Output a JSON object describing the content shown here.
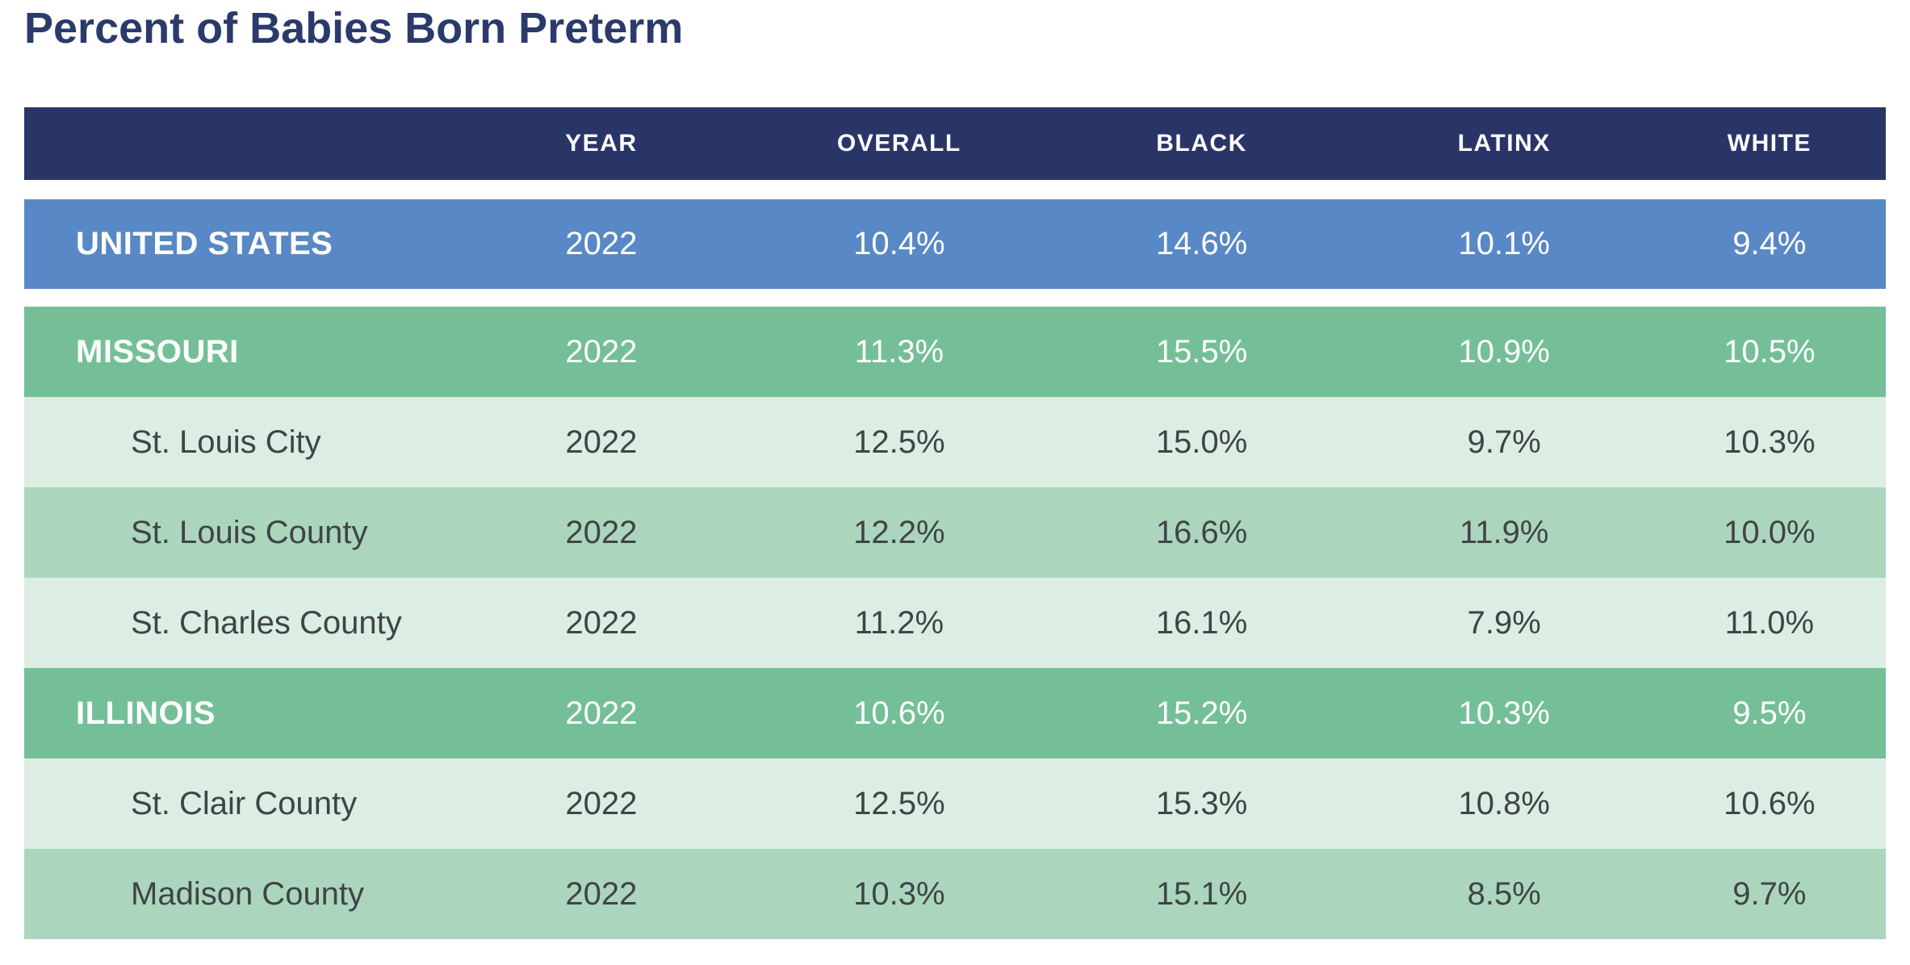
{
  "title": "Percent of Babies Born Preterm",
  "colors": {
    "title_navy": "#2b3a6b",
    "header_navy": "#2a3567",
    "us_row_blue": "#5888c5",
    "state_row_green": "#74bf97",
    "county_row_light_green": "#dcede3",
    "county_row_medium_green": "#abd6bd",
    "dark_text": "#3f4447",
    "light_text": "#ffffff"
  },
  "table": {
    "columns": {
      "label": "",
      "year": "YEAR",
      "overall": "OVERALL",
      "black": "BLACK",
      "latinx": "LATINX",
      "white": "WHITE"
    },
    "rows": [
      {
        "label": "UNITED STATES",
        "year": "2022",
        "overall": "10.4%",
        "black": "14.6%",
        "latinx": "10.1%",
        "white": "9.4%"
      },
      {
        "label": "MISSOURI",
        "year": "2022",
        "overall": "11.3%",
        "black": "15.5%",
        "latinx": "10.9%",
        "white": "10.5%"
      },
      {
        "label": "St. Louis City",
        "year": "2022",
        "overall": "12.5%",
        "black": "15.0%",
        "latinx": "9.7%",
        "white": "10.3%"
      },
      {
        "label": "St. Louis County",
        "year": "2022",
        "overall": "12.2%",
        "black": "16.6%",
        "latinx": "11.9%",
        "white": "10.0%"
      },
      {
        "label": "St. Charles County",
        "year": "2022",
        "overall": "11.2%",
        "black": "16.1%",
        "latinx": "7.9%",
        "white": "11.0%"
      },
      {
        "label": "ILLINOIS",
        "year": "2022",
        "overall": "10.6%",
        "black": "15.2%",
        "latinx": "10.3%",
        "white": "9.5%"
      },
      {
        "label": "St. Clair County",
        "year": "2022",
        "overall": "12.5%",
        "black": "15.3%",
        "latinx": "10.8%",
        "white": "10.6%"
      },
      {
        "label": "Madison County",
        "year": "2022",
        "overall": "10.3%",
        "black": "15.1%",
        "latinx": "8.5%",
        "white": "9.7%"
      }
    ]
  },
  "chart_data": {
    "type": "table",
    "title": "Percent of Babies Born Preterm",
    "columns": [
      "",
      "YEAR",
      "OVERALL",
      "BLACK",
      "LATINX",
      "WHITE"
    ],
    "unit": "percent",
    "rows": [
      {
        "label": "UNITED STATES",
        "year": 2022,
        "overall": 10.4,
        "black": 14.6,
        "latinx": 10.1,
        "white": 9.4
      },
      {
        "label": "MISSOURI",
        "year": 2022,
        "overall": 11.3,
        "black": 15.5,
        "latinx": 10.9,
        "white": 10.5
      },
      {
        "label": "St. Louis City",
        "year": 2022,
        "overall": 12.5,
        "black": 15.0,
        "latinx": 9.7,
        "white": 10.3
      },
      {
        "label": "St. Louis County",
        "year": 2022,
        "overall": 12.2,
        "black": 16.6,
        "latinx": 11.9,
        "white": 10.0
      },
      {
        "label": "St. Charles County",
        "year": 2022,
        "overall": 11.2,
        "black": 16.1,
        "latinx": 7.9,
        "white": 11.0
      },
      {
        "label": "ILLINOIS",
        "year": 2022,
        "overall": 10.6,
        "black": 15.2,
        "latinx": 10.3,
        "white": 9.5
      },
      {
        "label": "St. Clair County",
        "year": 2022,
        "overall": 12.5,
        "black": 15.3,
        "latinx": 10.8,
        "white": 10.6
      },
      {
        "label": "Madison County",
        "year": 2022,
        "overall": 10.3,
        "black": 15.1,
        "latinx": 8.5,
        "white": 9.7
      }
    ]
  }
}
